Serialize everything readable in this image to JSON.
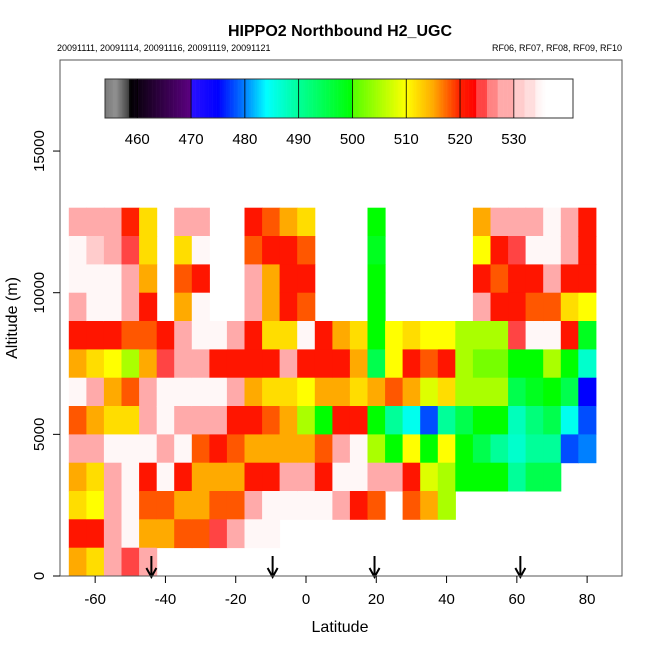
{
  "chart_data": {
    "type": "heatmap",
    "title": "HIPPO2 Northbound H2_UGC",
    "subtitle_left": "20091111, 20091114, 20091116, 20091119, 20091121",
    "subtitle_right": "RF06, RF07, RF08, RF09, RF10",
    "xlabel": "Latitude",
    "ylabel": "Altitude (m)",
    "xlim": [
      -70,
      90
    ],
    "ylim": [
      0,
      18200
    ],
    "xticks": [
      "-60",
      "-40",
      "-20",
      "0",
      "20",
      "40",
      "60",
      "80"
    ],
    "xtick_values": [
      -60,
      -40,
      -20,
      0,
      20,
      40,
      60,
      80
    ],
    "yticks": [
      "0",
      "5000",
      "10000",
      "15000"
    ],
    "ytick_values": [
      0,
      5000,
      10000,
      15000
    ],
    "grid": false,
    "colorbar": {
      "range": [
        454,
        541
      ],
      "ticks": [
        "460",
        "470",
        "480",
        "490",
        "500",
        "510",
        "520",
        "530"
      ],
      "tick_values": [
        460,
        470,
        480,
        490,
        500,
        510,
        520,
        530
      ],
      "placement": "top",
      "stops": [
        [
          454,
          "#7a7a7a"
        ],
        [
          456,
          "#909090"
        ],
        [
          457.5,
          "#606060"
        ],
        [
          458.4,
          "#404040"
        ],
        [
          458.5,
          "#000000"
        ],
        [
          469.9,
          "#5b0080"
        ],
        [
          470,
          "#2a10ff"
        ],
        [
          475,
          "#0000ff"
        ],
        [
          480,
          "#0080ff"
        ],
        [
          484,
          "#00ffff"
        ],
        [
          490,
          "#00ff99"
        ],
        [
          500,
          "#00ff00"
        ],
        [
          500.1,
          "#55ff00"
        ],
        [
          505,
          "#aaff00"
        ],
        [
          510,
          "#ffff00"
        ],
        [
          515,
          "#ffaa00"
        ],
        [
          520,
          "#ff2000"
        ],
        [
          523,
          "#ff0000"
        ],
        [
          523.1,
          "#ff4444"
        ],
        [
          525,
          "#ff4444"
        ],
        [
          525.1,
          "#ff8080"
        ],
        [
          527,
          "#ff8888"
        ],
        [
          527.1,
          "#ffaaaa"
        ],
        [
          530,
          "#ffaaaa"
        ],
        [
          530.1,
          "#ffcccc"
        ],
        [
          532,
          "#ffcccc"
        ],
        [
          532.1,
          "#ffdddd"
        ],
        [
          534,
          "#ffdddd"
        ],
        [
          534.1,
          "#fff0f0"
        ],
        [
          536,
          "#ffffff"
        ],
        [
          541,
          "#ffffff"
        ]
      ]
    },
    "flight_markers_latitude": [
      -44,
      -9.5,
      19.5,
      61
    ],
    "latitude_step": 5,
    "altitude_step": 1000,
    "altitudes": [
      12500,
      11500,
      10500,
      9500,
      8500,
      7500,
      6500,
      5500,
      4500,
      3500,
      2500,
      1500,
      500
    ],
    "columns": [
      {
        "lat": -65,
        "values": [
          528,
          535,
          535,
          530,
          521,
          515,
          535,
          518,
          528,
          515,
          512,
          521,
          515
        ]
      },
      {
        "lat": -60,
        "values": [
          530,
          532,
          535,
          535,
          521,
          512,
          530,
          515,
          528,
          512,
          510,
          521,
          512
        ]
      },
      {
        "lat": -55,
        "values": [
          528,
          530,
          535,
          535,
          521,
          510,
          515,
          512,
          535,
          530,
          528,
          528,
          528
        ]
      },
      {
        "lat": -50,
        "values": [
          520,
          525,
          528,
          528,
          518,
          505,
          518,
          512,
          535,
          535,
          535,
          535,
          525
        ]
      },
      {
        "lat": -45,
        "values": [
          512,
          512,
          515,
          521,
          518,
          515,
          528,
          528,
          535,
          521,
          518,
          515,
          528
        ]
      },
      {
        "lat": -40,
        "values": [
          null,
          null,
          null,
          null,
          521,
          525,
          535,
          535,
          528,
          535,
          518,
          515,
          null
        ]
      },
      {
        "lat": -35,
        "values": [
          528,
          512,
          518,
          515,
          528,
          530,
          535,
          530,
          535,
          521,
          515,
          518,
          null
        ]
      },
      {
        "lat": -30,
        "values": [
          530,
          535,
          521,
          535,
          535,
          528,
          535,
          528,
          518,
          515,
          515,
          518,
          null
        ]
      },
      {
        "lat": -25,
        "values": [
          null,
          null,
          null,
          null,
          535,
          521,
          535,
          528,
          521,
          515,
          518,
          525,
          null
        ]
      },
      {
        "lat": -20,
        "values": [
          null,
          null,
          null,
          null,
          530,
          521,
          528,
          521,
          518,
          515,
          518,
          528,
          null
        ]
      },
      {
        "lat": -15,
        "values": [
          521,
          518,
          528,
          530,
          521,
          521,
          515,
          521,
          515,
          521,
          528,
          535,
          null
        ]
      },
      {
        "lat": -10,
        "values": [
          518,
          521,
          515,
          515,
          512,
          521,
          512,
          518,
          515,
          521,
          535,
          535,
          null
        ]
      },
      {
        "lat": -5,
        "values": [
          515,
          521,
          521,
          521,
          512,
          528,
          512,
          515,
          515,
          528,
          535,
          null,
          null
        ]
      },
      {
        "lat": 0,
        "values": [
          512,
          518,
          521,
          518,
          535,
          521,
          510,
          505,
          515,
          528,
          535,
          null,
          null
        ]
      },
      {
        "lat": 5,
        "values": [
          null,
          null,
          null,
          null,
          521,
          521,
          515,
          500,
          518,
          521,
          535,
          null,
          null
        ]
      },
      {
        "lat": 10,
        "values": [
          null,
          null,
          null,
          null,
          515,
          521,
          515,
          521,
          530,
          535,
          528,
          null,
          null
        ]
      },
      {
        "lat": 15,
        "values": [
          null,
          null,
          null,
          null,
          512,
          515,
          512,
          521,
          535,
          535,
          521,
          null,
          null
        ]
      },
      {
        "lat": 20,
        "values": [
          500,
          498,
          500,
          500,
          500,
          495,
          515,
          500,
          505,
          528,
          518,
          null,
          null
        ]
      },
      {
        "lat": 25,
        "values": [
          null,
          null,
          null,
          null,
          510,
          510,
          518,
          490,
          500,
          528,
          null,
          null,
          null
        ]
      },
      {
        "lat": 30,
        "values": [
          null,
          null,
          null,
          null,
          512,
          521,
          515,
          485,
          510,
          521,
          518,
          null,
          null
        ]
      },
      {
        "lat": 35,
        "values": [
          null,
          null,
          null,
          null,
          510,
          518,
          508,
          478,
          500,
          508,
          515,
          null,
          null
        ]
      },
      {
        "lat": 40,
        "values": [
          null,
          null,
          null,
          null,
          510,
          521,
          512,
          490,
          510,
          505,
          505,
          null,
          null
        ]
      },
      {
        "lat": 45,
        "values": [
          null,
          null,
          null,
          null,
          505,
          505,
          505,
          495,
          500,
          500,
          null,
          null,
          null
        ]
      },
      {
        "lat": 50,
        "values": [
          515,
          510,
          521,
          528,
          505,
          502,
          505,
          500,
          495,
          500,
          null,
          null,
          null
        ]
      },
      {
        "lat": 55,
        "values": [
          528,
          521,
          518,
          521,
          505,
          502,
          505,
          500,
          490,
          500,
          null,
          null,
          null
        ]
      },
      {
        "lat": 60,
        "values": [
          528,
          525,
          521,
          521,
          525,
          500,
          495,
          488,
          487,
          490,
          null,
          null,
          null
        ]
      },
      {
        "lat": 65,
        "values": [
          530,
          535,
          521,
          518,
          535,
          500,
          498,
          492,
          490,
          495,
          null,
          null,
          null
        ]
      },
      {
        "lat": 70,
        "values": [
          535,
          535,
          528,
          518,
          535,
          505,
          500,
          495,
          490,
          495,
          null,
          null,
          null
        ]
      },
      {
        "lat": 75,
        "values": [
          528,
          528,
          521,
          512,
          521,
          500,
          495,
          485,
          478,
          null,
          null,
          null,
          null
        ]
      },
      {
        "lat": 80,
        "values": [
          521,
          521,
          521,
          510,
          498,
          487,
          475,
          478,
          480,
          null,
          null,
          null,
          null
        ]
      }
    ]
  }
}
